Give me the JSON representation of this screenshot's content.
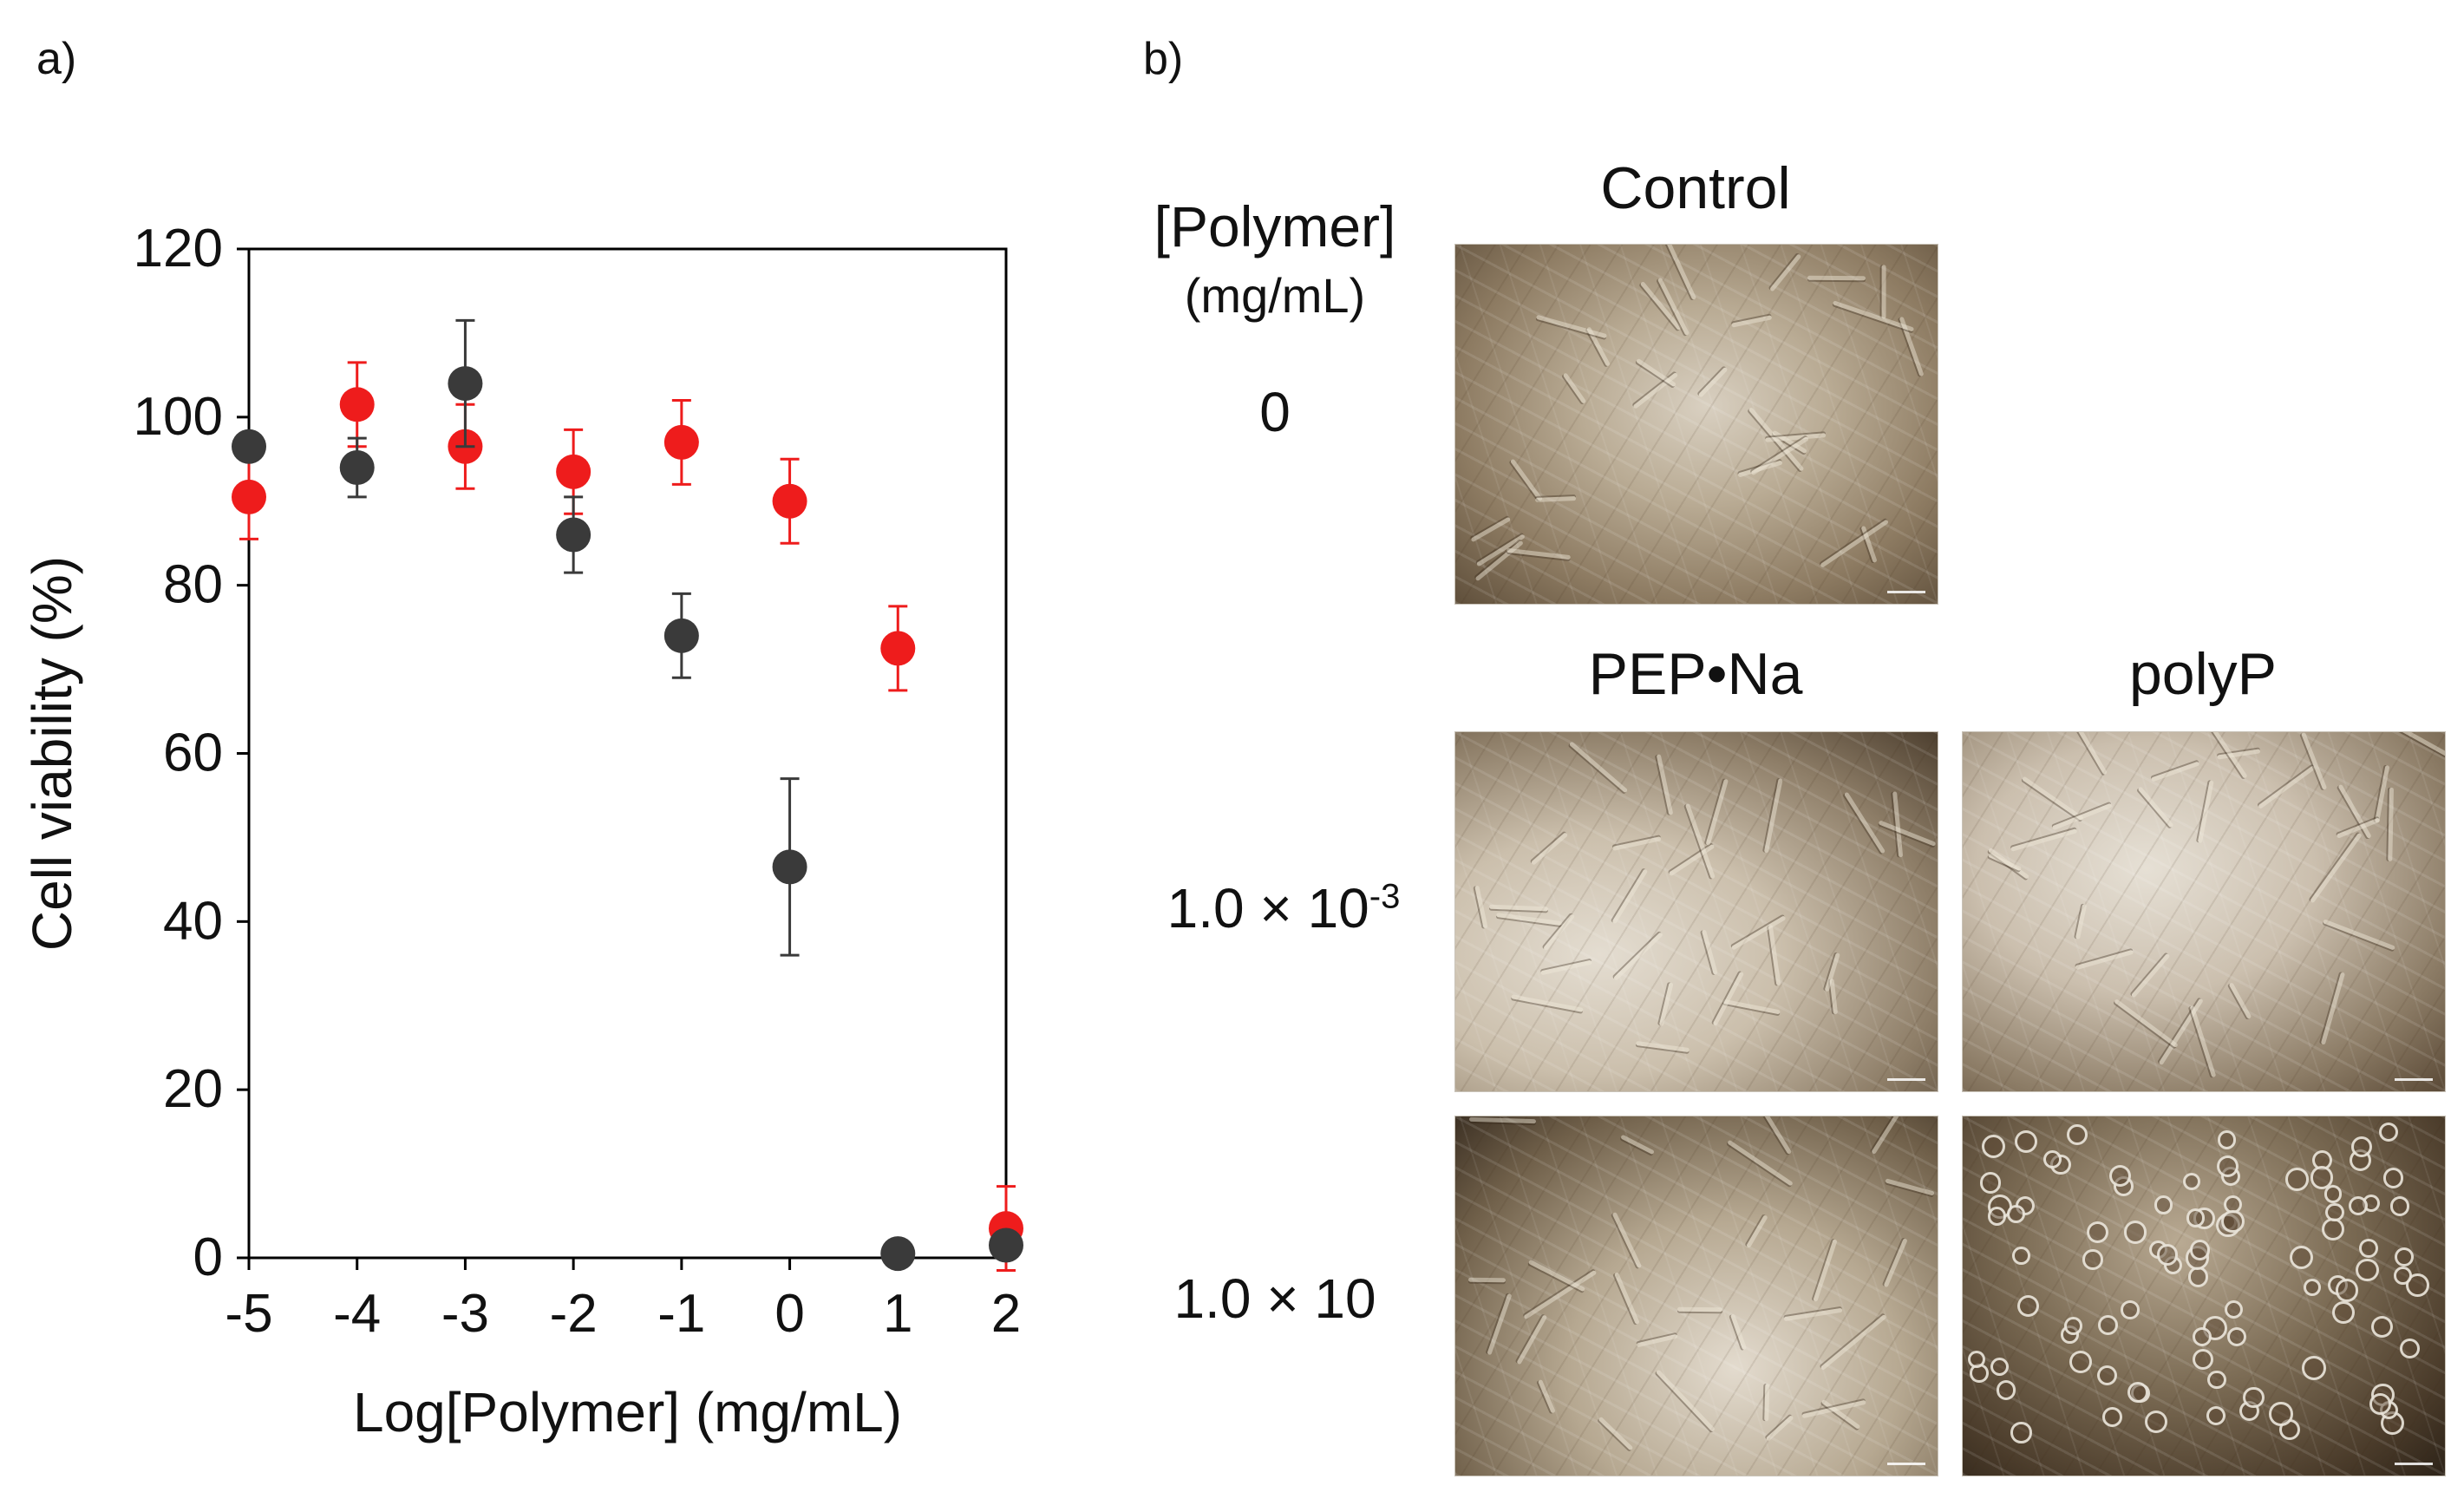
{
  "panel_a_label": "a)",
  "panel_b_label": "b)",
  "chart_data": {
    "type": "scatter",
    "title": "",
    "xlabel": "Log[Polymer] (mg/mL)",
    "ylabel": "Cell viability (%)",
    "xlim": [
      -5,
      2
    ],
    "ylim": [
      0,
      120
    ],
    "xticks": [
      -5,
      -4,
      -3,
      -2,
      -1,
      0,
      1,
      2
    ],
    "yticks": [
      0,
      20,
      40,
      60,
      80,
      100,
      120
    ],
    "xtick_labels": [
      "-5",
      "-4",
      "-3",
      "-2",
      "-1",
      "0",
      "1",
      "2"
    ],
    "ytick_labels": [
      "0",
      "20",
      "40",
      "60",
      "80",
      "100",
      "120"
    ],
    "grid": false,
    "legend": "none",
    "series": [
      {
        "color": "#ee1c1c",
        "x": [
          -5,
          -4,
          -3,
          -2,
          -1,
          0,
          1,
          2
        ],
        "y": [
          90.5,
          101.5,
          96.5,
          93.5,
          97,
          90,
          72.5,
          3.5
        ],
        "err": [
          5,
          5,
          5,
          5,
          5,
          5,
          5,
          5
        ]
      },
      {
        "color": "#3a3a3a",
        "x": [
          -5,
          -4,
          -3,
          -2,
          -1,
          0,
          1,
          2
        ],
        "y": [
          96.5,
          94,
          104,
          86,
          74,
          46.5,
          0.5,
          1.5
        ],
        "err": [
          0,
          3.5,
          7.5,
          4.5,
          5,
          10.5,
          0,
          0
        ]
      }
    ]
  },
  "panel_b": {
    "polymer_header": "[Polymer]",
    "polymer_unit": "(mg/mL)",
    "control_header": "Control",
    "pep_header": "PEP•Na",
    "polyp_header": "polyP",
    "row_zero": "0",
    "row_low_base": "1.0 × 10",
    "row_low_exp": "-3",
    "row_high": "1.0 × 10"
  }
}
